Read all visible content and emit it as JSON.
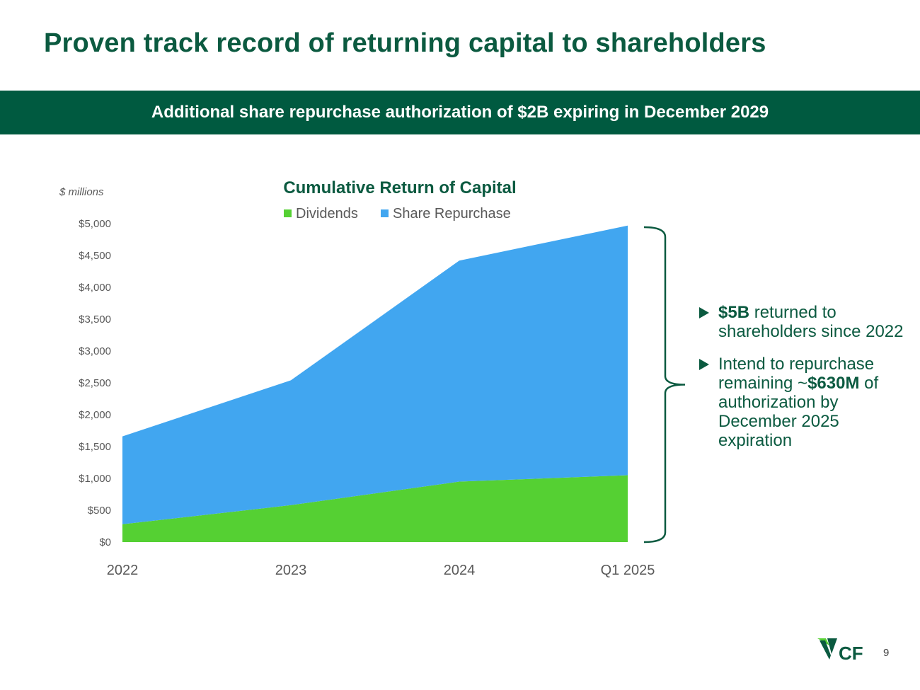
{
  "slide": {
    "title": "Proven track record of returning capital to shareholders",
    "banner": "Additional share repurchase authorization of $2B expiring in December 2029",
    "page_number": "9",
    "logo_text": "CF"
  },
  "callouts": [
    {
      "bold": "$5B",
      "text": " returned to shareholders since 2022"
    },
    {
      "pre": "Intend to repurchase remaining ~",
      "bold": "$630M",
      "post": " of authorization by December 2025 expiration"
    }
  ],
  "colors": {
    "brand_green": "#005a40",
    "dividends": "#55d033",
    "share_repurchase": "#41a6f0"
  },
  "chart_data": {
    "type": "area",
    "stacked": true,
    "title": "Cumulative Return of Capital",
    "units_label": "$ millions",
    "categories": [
      "2022",
      "2023",
      "2024",
      "Q1 2025"
    ],
    "series": [
      {
        "name": "Dividends",
        "values": [
          280,
          580,
          950,
          1050
        ]
      },
      {
        "name": "Share Repurchase",
        "values": [
          1380,
          1960,
          3470,
          3920
        ]
      }
    ],
    "ylim": [
      0,
      5000
    ],
    "y_ticks": [
      0,
      500,
      1000,
      1500,
      2000,
      2500,
      3000,
      3500,
      4000,
      4500,
      5000
    ],
    "y_tick_labels": [
      "$0",
      "$500",
      "$1,000",
      "$1,500",
      "$2,000",
      "$2,500",
      "$3,000",
      "$3,500",
      "$4,000",
      "$4,500",
      "$5,000"
    ],
    "legend_position": "top",
    "grid": false
  }
}
